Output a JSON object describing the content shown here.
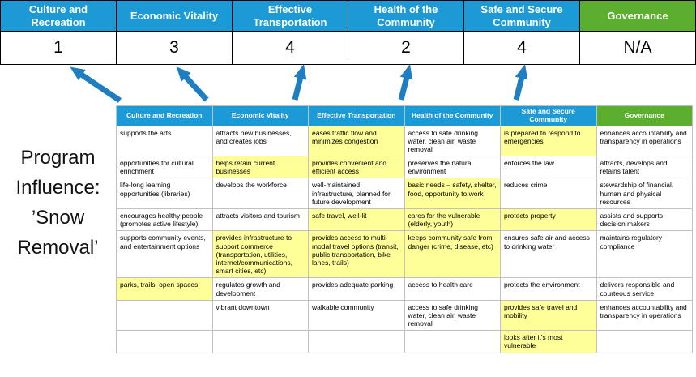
{
  "slide": {
    "program_label": {
      "lines": [
        "Program",
        "Influence:",
        "’Snow",
        "Removal’"
      ]
    }
  },
  "colors": {
    "header_blue": "#1b9ad6",
    "header_green": "#5bae2e",
    "highlight_yellow": "#ffff99",
    "arrow_blue": "#1f7ec2"
  },
  "score_table": {
    "columns": [
      {
        "label": "Culture and Recreation",
        "score": "1",
        "type": "blue"
      },
      {
        "label": "Economic Vitality",
        "score": "3",
        "type": "blue"
      },
      {
        "label": "Effective Transportation",
        "score": "4",
        "type": "blue"
      },
      {
        "label": "Health of the Community",
        "score": "2",
        "type": "blue"
      },
      {
        "label": "Safe and Secure Community",
        "score": "4",
        "type": "blue"
      },
      {
        "label": "Governance",
        "score": "N/A",
        "type": "green"
      }
    ]
  },
  "matrix": {
    "headers": [
      {
        "label": "Culture and Recreation",
        "type": "blue"
      },
      {
        "label": "Economic Vitality",
        "type": "blue"
      },
      {
        "label": "Effective Transportation",
        "type": "blue"
      },
      {
        "label": "Health of the Community",
        "type": "blue"
      },
      {
        "label": "Safe and Secure Community",
        "type": "blue"
      },
      {
        "label": "Governance",
        "type": "green"
      }
    ],
    "rows": [
      [
        {
          "text": "supports the arts",
          "highlight": false
        },
        {
          "text": "attracts new businesses, and creates jobs",
          "highlight": false
        },
        {
          "text": "eases traffic flow and minimizes congestion",
          "highlight": true
        },
        {
          "text": "access to safe drinking water, clean air, waste removal",
          "highlight": false
        },
        {
          "text": "is prepared to respond to emergencies",
          "highlight": true
        },
        {
          "text": "enhances accountability and transparency in operations",
          "highlight": false
        }
      ],
      [
        {
          "text": "opportunities for cultural enrichment",
          "highlight": false
        },
        {
          "text": "helps retain current businesses",
          "highlight": true
        },
        {
          "text": "provides convenient and efficient access",
          "highlight": true
        },
        {
          "text": "preserves the natural environment",
          "highlight": false
        },
        {
          "text": "enforces the law",
          "highlight": false
        },
        {
          "text": "attracts, develops and retains talent",
          "highlight": false
        }
      ],
      [
        {
          "text": "life-long learning opportunities (libraries)",
          "highlight": false
        },
        {
          "text": "develops the workforce",
          "highlight": false
        },
        {
          "text": "well-maintained infrastructure, planned for future development",
          "highlight": false
        },
        {
          "text": "basic needs – safety, shelter, food, opportunity to work",
          "highlight": true
        },
        {
          "text": "reduces crime",
          "highlight": false
        },
        {
          "text": "stewardship of financial, human and physical resources",
          "highlight": false
        }
      ],
      [
        {
          "text": "encourages healthy people (promotes active lifestyle)",
          "highlight": false
        },
        {
          "text": "attracts visitors and tourism",
          "highlight": false
        },
        {
          "text": "safe travel, well-lit",
          "highlight": true
        },
        {
          "text": "cares for the vulnerable (elderly, youth)",
          "highlight": true
        },
        {
          "text": "protects property",
          "highlight": true
        },
        {
          "text": "assists and supports decision makers",
          "highlight": false
        }
      ],
      [
        {
          "text": "supports community events, and entertainment options",
          "highlight": false
        },
        {
          "text": "provides infrastructure to support commerce (transportation, utilities, internet/communications, smart cities, etc)",
          "highlight": true
        },
        {
          "text": "provides access to multi-modal travel options (transit, public transportation, bike lanes, trails)",
          "highlight": true
        },
        {
          "text": "keeps community safe from danger (crime, disease, etc)",
          "highlight": true
        },
        {
          "text": "ensures safe air and access to drinking water",
          "highlight": false
        },
        {
          "text": "maintains regulatory compliance",
          "highlight": false
        }
      ],
      [
        {
          "text": "parks, trails, open spaces",
          "highlight": true
        },
        {
          "text": "regulates growth and development",
          "highlight": false
        },
        {
          "text": "provides adequate parking",
          "highlight": false
        },
        {
          "text": "access to health care",
          "highlight": false
        },
        {
          "text": "protects the environment",
          "highlight": false
        },
        {
          "text": "delivers responsible and courteous service",
          "highlight": false
        }
      ],
      [
        {
          "text": "",
          "highlight": false
        },
        {
          "text": "vibrant downtown",
          "highlight": false
        },
        {
          "text": "walkable community",
          "highlight": false
        },
        {
          "text": "access to safe drinking water, clean air, waste removal",
          "highlight": false
        },
        {
          "text": "provides safe travel and mobility",
          "highlight": true
        },
        {
          "text": "enhances accountability and transparency in operations",
          "highlight": false
        }
      ],
      [
        {
          "text": "",
          "highlight": false
        },
        {
          "text": "",
          "highlight": false
        },
        {
          "text": "",
          "highlight": false
        },
        {
          "text": "",
          "highlight": false
        },
        {
          "text": "looks after it's most vulnerable",
          "highlight": true
        },
        {
          "text": "",
          "highlight": false
        }
      ]
    ]
  }
}
